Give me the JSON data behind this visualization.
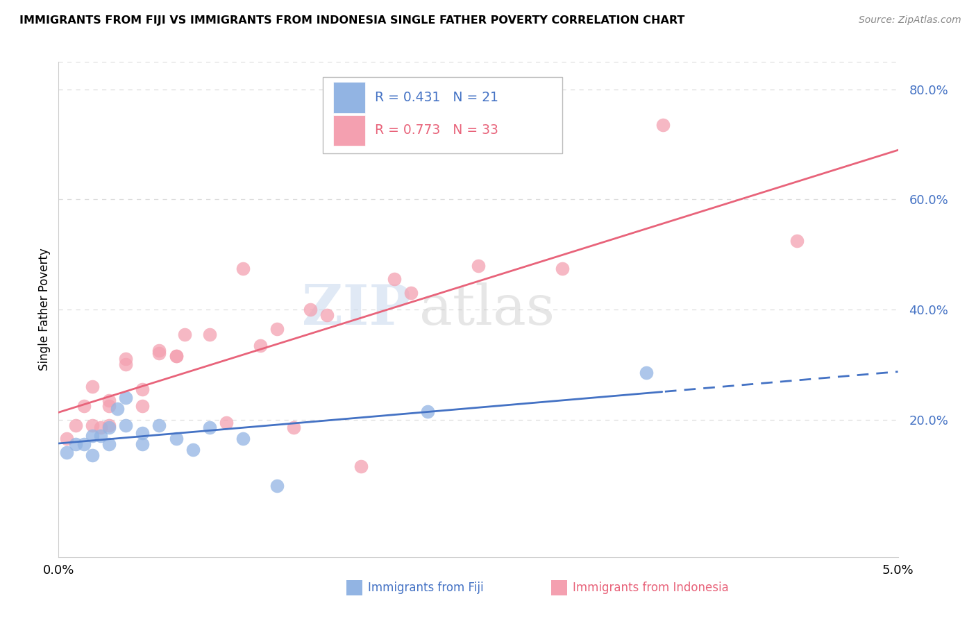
{
  "title": "IMMIGRANTS FROM FIJI VS IMMIGRANTS FROM INDONESIA SINGLE FATHER POVERTY CORRELATION CHART",
  "source": "Source: ZipAtlas.com",
  "ylabel": "Single Father Poverty",
  "fiji_color": "#92B4E3",
  "indonesia_color": "#F4A0B0",
  "fiji_line_color": "#4472C4",
  "indonesia_line_color": "#E8637A",
  "fiji_R": 0.431,
  "fiji_N": 21,
  "indonesia_R": 0.773,
  "indonesia_N": 33,
  "x_range": [
    0.0,
    0.05
  ],
  "y_range": [
    -0.05,
    0.85
  ],
  "y_ticks": [
    0.0,
    0.2,
    0.4,
    0.6,
    0.8
  ],
  "y_tick_labels": [
    "",
    "20.0%",
    "40.0%",
    "60.0%",
    "80.0%"
  ],
  "fiji_x": [
    0.0005,
    0.001,
    0.0015,
    0.002,
    0.002,
    0.0025,
    0.003,
    0.003,
    0.0035,
    0.004,
    0.004,
    0.005,
    0.005,
    0.006,
    0.007,
    0.008,
    0.009,
    0.011,
    0.013,
    0.022,
    0.035
  ],
  "fiji_y": [
    0.14,
    0.155,
    0.155,
    0.17,
    0.135,
    0.17,
    0.185,
    0.155,
    0.22,
    0.19,
    0.24,
    0.175,
    0.155,
    0.19,
    0.165,
    0.145,
    0.185,
    0.165,
    0.08,
    0.215,
    0.285
  ],
  "indonesia_x": [
    0.0005,
    0.001,
    0.0015,
    0.002,
    0.002,
    0.0025,
    0.003,
    0.003,
    0.003,
    0.004,
    0.004,
    0.005,
    0.005,
    0.006,
    0.006,
    0.007,
    0.007,
    0.0075,
    0.009,
    0.01,
    0.011,
    0.012,
    0.013,
    0.014,
    0.015,
    0.016,
    0.018,
    0.02,
    0.021,
    0.025,
    0.03,
    0.036,
    0.044
  ],
  "indonesia_y": [
    0.165,
    0.19,
    0.225,
    0.19,
    0.26,
    0.185,
    0.225,
    0.235,
    0.19,
    0.3,
    0.31,
    0.225,
    0.255,
    0.32,
    0.325,
    0.315,
    0.315,
    0.355,
    0.355,
    0.195,
    0.475,
    0.335,
    0.365,
    0.185,
    0.4,
    0.39,
    0.115,
    0.455,
    0.43,
    0.48,
    0.475,
    0.735,
    0.525
  ],
  "watermark_zip": "ZIP",
  "watermark_atlas": "atlas",
  "background_color": "#FFFFFF",
  "grid_color": "#DDDDDD",
  "legend_label_fiji": "Immigrants from Fiji",
  "legend_label_indonesia": "Immigrants from Indonesia"
}
